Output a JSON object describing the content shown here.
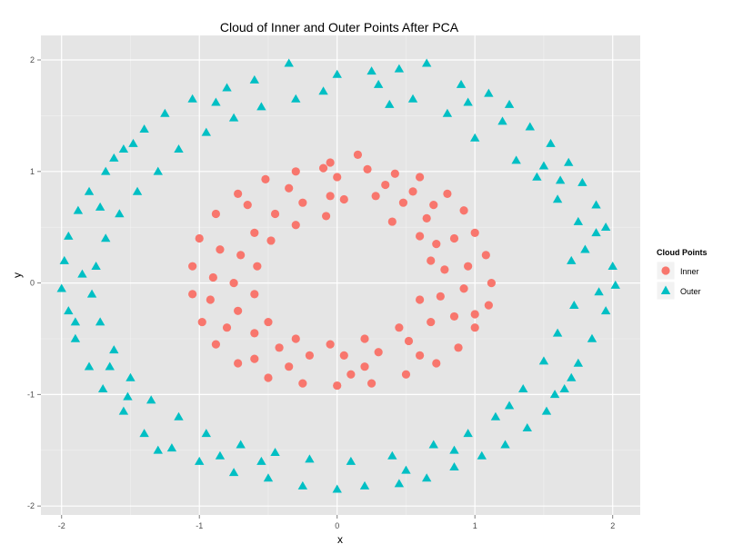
{
  "chart_data": {
    "type": "scatter",
    "title": "Cloud of Inner and Outer Points After PCA",
    "xlabel": "x",
    "ylabel": "y",
    "xlim": [
      -2.15,
      2.2
    ],
    "ylim": [
      -2.08,
      2.22
    ],
    "x_ticks": [
      -2,
      -1,
      0,
      1,
      2
    ],
    "y_ticks": [
      -2,
      -1,
      0,
      1,
      2
    ],
    "x_tick_labels": [
      "-2",
      "-1",
      "0",
      "1",
      "2"
    ],
    "y_tick_labels": [
      "-2",
      "-1",
      "0",
      "1",
      "2"
    ],
    "grid": true,
    "legend": {
      "title": "Cloud Points",
      "placement": "right"
    },
    "series": [
      {
        "name": "Inner",
        "marker": "circle",
        "color": "#F8766D",
        "points": [
          [
            -0.1,
            1.03
          ],
          [
            0.22,
            1.02
          ],
          [
            0.42,
            0.98
          ],
          [
            0.6,
            0.95
          ],
          [
            0.8,
            0.8
          ],
          [
            0.92,
            0.65
          ],
          [
            1.0,
            0.45
          ],
          [
            1.08,
            0.25
          ],
          [
            1.12,
            0.0
          ],
          [
            1.1,
            -0.2
          ],
          [
            1.0,
            -0.4
          ],
          [
            0.88,
            -0.58
          ],
          [
            0.72,
            -0.72
          ],
          [
            0.5,
            -0.82
          ],
          [
            0.25,
            -0.9
          ],
          [
            0.0,
            -0.92
          ],
          [
            -0.25,
            -0.9
          ],
          [
            -0.5,
            -0.85
          ],
          [
            -0.72,
            -0.72
          ],
          [
            -0.88,
            -0.55
          ],
          [
            -0.98,
            -0.35
          ],
          [
            -1.05,
            -0.1
          ],
          [
            -1.05,
            0.15
          ],
          [
            -1.0,
            0.4
          ],
          [
            -0.88,
            0.62
          ],
          [
            -0.72,
            0.8
          ],
          [
            -0.52,
            0.93
          ],
          [
            -0.3,
            1.0
          ],
          [
            0.15,
            1.15
          ],
          [
            -0.05,
            1.08
          ],
          [
            0.05,
            0.75
          ],
          [
            0.28,
            0.78
          ],
          [
            0.48,
            0.72
          ],
          [
            0.65,
            0.58
          ],
          [
            0.72,
            0.35
          ],
          [
            0.78,
            0.12
          ],
          [
            0.75,
            -0.12
          ],
          [
            0.68,
            -0.35
          ],
          [
            0.52,
            -0.52
          ],
          [
            0.3,
            -0.62
          ],
          [
            0.05,
            -0.65
          ],
          [
            -0.2,
            -0.65
          ],
          [
            -0.42,
            -0.58
          ],
          [
            -0.6,
            -0.45
          ],
          [
            -0.72,
            -0.25
          ],
          [
            -0.75,
            0.0
          ],
          [
            -0.7,
            0.25
          ],
          [
            -0.6,
            0.45
          ],
          [
            -0.45,
            0.62
          ],
          [
            -0.25,
            0.72
          ],
          [
            -0.05,
            0.78
          ],
          [
            0.4,
            0.55
          ],
          [
            0.6,
            0.42
          ],
          [
            0.68,
            0.2
          ],
          [
            0.6,
            -0.15
          ],
          [
            0.45,
            -0.4
          ],
          [
            0.2,
            -0.5
          ],
          [
            -0.05,
            -0.55
          ],
          [
            -0.3,
            -0.5
          ],
          [
            -0.5,
            -0.35
          ],
          [
            -0.6,
            -0.1
          ],
          [
            -0.58,
            0.15
          ],
          [
            -0.48,
            0.38
          ],
          [
            -0.3,
            0.52
          ],
          [
            -0.08,
            0.6
          ],
          [
            0.92,
            -0.05
          ],
          [
            1.0,
            -0.28
          ],
          [
            0.85,
            0.4
          ],
          [
            0.2,
            -0.75
          ],
          [
            -0.35,
            -0.75
          ],
          [
            -0.8,
            -0.4
          ],
          [
            -0.85,
            0.3
          ],
          [
            -0.35,
            0.85
          ],
          [
            0.35,
            0.88
          ],
          [
            0.7,
            0.7
          ],
          [
            0.95,
            0.15
          ],
          [
            0.85,
            -0.3
          ],
          [
            0.6,
            -0.65
          ],
          [
            0.1,
            -0.82
          ],
          [
            -0.6,
            -0.68
          ],
          [
            -0.92,
            -0.15
          ],
          [
            -0.9,
            0.05
          ],
          [
            -0.65,
            0.7
          ],
          [
            0.0,
            0.95
          ],
          [
            0.55,
            0.82
          ]
        ]
      },
      {
        "name": "Outer",
        "marker": "triangle",
        "color": "#00BFC4",
        "points": [
          [
            -0.35,
            1.97
          ],
          [
            0.0,
            1.87
          ],
          [
            0.25,
            1.9
          ],
          [
            0.45,
            1.92
          ],
          [
            0.65,
            1.97
          ],
          [
            0.9,
            1.78
          ],
          [
            1.1,
            1.7
          ],
          [
            1.25,
            1.6
          ],
          [
            1.4,
            1.4
          ],
          [
            1.55,
            1.25
          ],
          [
            1.68,
            1.08
          ],
          [
            1.78,
            0.9
          ],
          [
            1.88,
            0.7
          ],
          [
            1.95,
            0.5
          ],
          [
            2.0,
            0.15
          ],
          [
            2.02,
            -0.02
          ],
          [
            1.95,
            -0.25
          ],
          [
            1.85,
            -0.5
          ],
          [
            1.75,
            -0.72
          ],
          [
            1.65,
            -0.95
          ],
          [
            1.52,
            -1.15
          ],
          [
            1.38,
            -1.3
          ],
          [
            1.22,
            -1.45
          ],
          [
            1.05,
            -1.55
          ],
          [
            0.85,
            -1.65
          ],
          [
            0.65,
            -1.75
          ],
          [
            0.45,
            -1.8
          ],
          [
            0.2,
            -1.82
          ],
          [
            0.0,
            -1.85
          ],
          [
            -0.25,
            -1.82
          ],
          [
            -0.5,
            -1.75
          ],
          [
            -0.75,
            -1.7
          ],
          [
            -1.0,
            -1.6
          ],
          [
            -1.2,
            -1.48
          ],
          [
            -1.4,
            -1.35
          ],
          [
            -1.55,
            -1.15
          ],
          [
            -1.7,
            -0.95
          ],
          [
            -1.8,
            -0.75
          ],
          [
            -1.9,
            -0.5
          ],
          [
            -1.95,
            -0.25
          ],
          [
            -2.0,
            -0.05
          ],
          [
            -1.98,
            0.2
          ],
          [
            -1.95,
            0.42
          ],
          [
            -1.88,
            0.65
          ],
          [
            -1.8,
            0.82
          ],
          [
            -1.68,
            1.0
          ],
          [
            -1.55,
            1.2
          ],
          [
            -1.4,
            1.38
          ],
          [
            -1.25,
            1.52
          ],
          [
            -1.05,
            1.65
          ],
          [
            -0.8,
            1.75
          ],
          [
            -0.6,
            1.82
          ],
          [
            0.38,
            1.6
          ],
          [
            0.55,
            1.65
          ],
          [
            0.8,
            1.52
          ],
          [
            1.0,
            1.3
          ],
          [
            1.3,
            1.1
          ],
          [
            1.45,
            0.95
          ],
          [
            1.6,
            0.75
          ],
          [
            1.75,
            0.55
          ],
          [
            1.8,
            0.3
          ],
          [
            1.72,
            -0.2
          ],
          [
            1.6,
            -0.45
          ],
          [
            1.5,
            -0.7
          ],
          [
            1.35,
            -0.95
          ],
          [
            1.15,
            -1.2
          ],
          [
            0.95,
            -1.35
          ],
          [
            0.7,
            -1.45
          ],
          [
            0.4,
            -1.55
          ],
          [
            0.1,
            -1.6
          ],
          [
            -0.2,
            -1.58
          ],
          [
            -0.45,
            -1.52
          ],
          [
            -0.7,
            -1.45
          ],
          [
            -0.95,
            -1.35
          ],
          [
            -1.15,
            -1.2
          ],
          [
            -1.35,
            -1.05
          ],
          [
            -1.5,
            -0.85
          ],
          [
            -1.62,
            -0.6
          ],
          [
            -1.72,
            -0.35
          ],
          [
            -1.78,
            -0.1
          ],
          [
            -1.75,
            0.15
          ],
          [
            -1.68,
            0.4
          ],
          [
            -1.58,
            0.62
          ],
          [
            -1.45,
            0.82
          ],
          [
            -1.3,
            1.0
          ],
          [
            -1.15,
            1.2
          ],
          [
            -0.95,
            1.35
          ],
          [
            -0.75,
            1.48
          ],
          [
            -0.55,
            1.58
          ],
          [
            -0.3,
            1.65
          ],
          [
            -0.1,
            1.72
          ],
          [
            1.2,
            1.45
          ],
          [
            1.5,
            1.05
          ],
          [
            1.9,
            -0.08
          ],
          [
            1.7,
            0.2
          ],
          [
            1.58,
            -1.0
          ],
          [
            1.25,
            -1.1
          ],
          [
            0.85,
            -1.5
          ],
          [
            -0.55,
            -1.6
          ],
          [
            -1.3,
            -1.5
          ],
          [
            -1.65,
            -0.75
          ],
          [
            -1.85,
            0.08
          ],
          [
            -1.72,
            0.68
          ],
          [
            -1.48,
            1.25
          ],
          [
            -0.88,
            1.62
          ],
          [
            0.3,
            1.78
          ],
          [
            0.95,
            1.62
          ],
          [
            1.62,
            0.92
          ],
          [
            1.88,
            0.45
          ],
          [
            1.7,
            -0.85
          ],
          [
            0.5,
            -1.68
          ],
          [
            -0.85,
            -1.55
          ],
          [
            -1.52,
            -1.02
          ],
          [
            -1.9,
            -0.35
          ],
          [
            -1.62,
            1.12
          ]
        ]
      }
    ]
  }
}
